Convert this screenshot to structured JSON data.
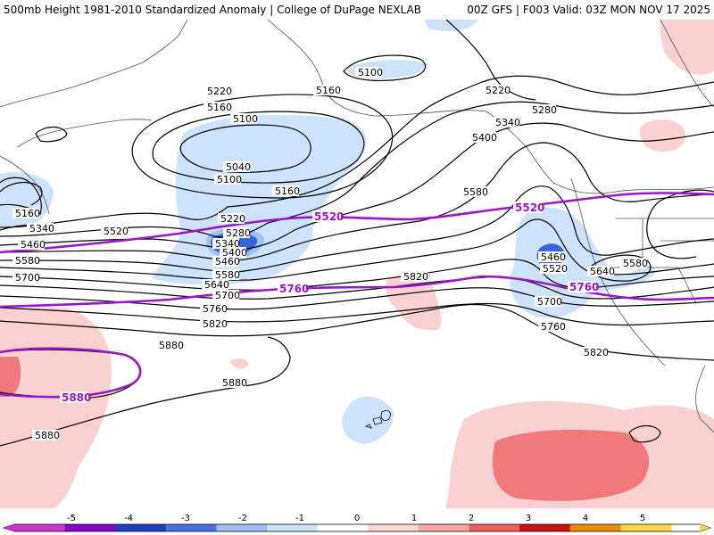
{
  "header": {
    "title_left": "500mb Height 1981-2010 Standardized Anomaly | College of DuPage NEXLAB",
    "title_right": "00Z GFS | F003 Valid: 03Z MON NOV 17 2025"
  },
  "map": {
    "contour_labels": [
      "5220",
      "5160",
      "5100",
      "5040",
      "5100",
      "5160",
      "5220",
      "5280",
      "5340",
      "5400",
      "5460",
      "5520",
      "5580",
      "5640",
      "5700",
      "5760",
      "5820",
      "5880",
      "5880",
      "5880"
    ],
    "east_labels": [
      "5100",
      "5160",
      "5220",
      "5280",
      "5340",
      "5400",
      "5460",
      "5520",
      "5580",
      "5640",
      "5580",
      "5700",
      "5760",
      "5820",
      "5820"
    ],
    "west_labels": [
      "5160",
      "5340",
      "5460",
      "5580",
      "5700"
    ],
    "highlight_labels": [
      "5520",
      "5760",
      "5880",
      "5520",
      "5760"
    ]
  },
  "colorbar": {
    "ticks": [
      "-5",
      "-4",
      "-3",
      "-2",
      "-1",
      "0",
      "1",
      "2",
      "3",
      "4",
      "5"
    ],
    "colors": [
      "#cc33cc",
      "#8800cc",
      "#2040c0",
      "#4a72e6",
      "#9fbff5",
      "#cfe2fb",
      "#ffffff",
      "#fcd6d6",
      "#f9a6a6",
      "#ee6060",
      "#cc1010",
      "#e89000",
      "#ffd84a"
    ]
  },
  "colors": {
    "neg_light": "#cde2fb",
    "neg_mid": "#9fc2f6",
    "neg_dark": "#3a64df",
    "pos_light": "#fbd0d0",
    "pos_mid": "#f07a7a",
    "highlight": "#9b16c8"
  }
}
